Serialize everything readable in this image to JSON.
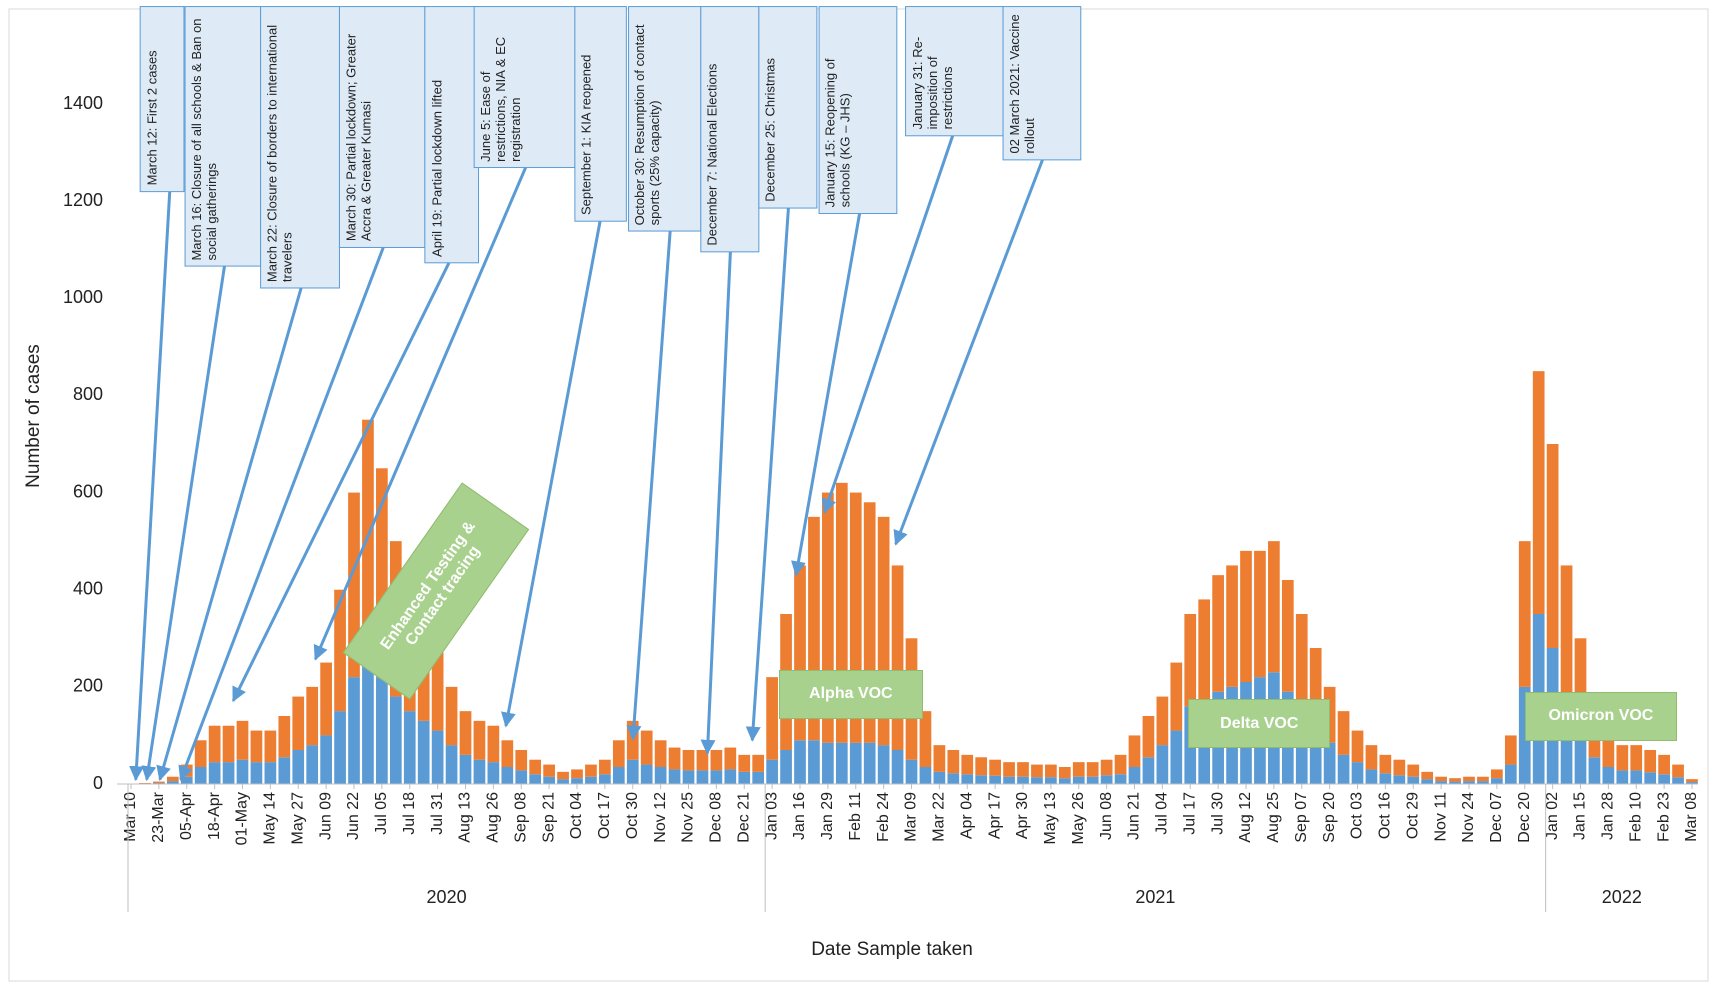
{
  "chart_data": {
    "type": "stacked_bar",
    "x_label": "Date Sample taken",
    "y_label": "Number of cases",
    "categories": [
      "Mar 10",
      null,
      "23-Mar",
      null,
      "05-Apr",
      null,
      "18-Apr",
      null,
      "01-May",
      null,
      "May 14",
      null,
      "May 27",
      null,
      "Jun 09",
      null,
      "Jun 22",
      null,
      "Jul 05",
      null,
      "Jul 18",
      null,
      "Jul 31",
      null,
      "Aug 13",
      null,
      "Aug 26",
      null,
      "Sep 08",
      null,
      "Sep 21",
      null,
      "Oct 04",
      null,
      "Oct 17",
      null,
      "Oct 30",
      null,
      "Nov 12",
      null,
      "Nov 25",
      null,
      "Dec 08",
      null,
      "Dec 21",
      null,
      "Jan 03",
      null,
      "Jan 16",
      null,
      "Jan 29",
      null,
      "Feb 11",
      null,
      "Feb 24",
      null,
      "Mar 09",
      null,
      "Mar 22",
      null,
      "Apr 04",
      null,
      "Apr 17",
      null,
      "Apr 30",
      null,
      "May 13",
      null,
      "May 26",
      null,
      "Jun 08",
      null,
      "Jun 21",
      null,
      "Jul 04",
      null,
      "Jul 17",
      null,
      "Jul 30",
      null,
      "Aug 12",
      null,
      "Aug 25",
      null,
      "Sep 07",
      null,
      "Sep 20",
      null,
      "Oct 03",
      null,
      "Oct 16",
      null,
      "Oct 29",
      null,
      "Nov 11",
      null,
      "Nov 24",
      null,
      "Dec 07",
      null,
      "Dec 20",
      null,
      "Jan 02",
      null,
      "Jan 15",
      null,
      "Jan 28",
      null,
      "Feb 10",
      null,
      "Feb 23",
      null,
      "Mar 08"
    ],
    "x_groups": [
      {
        "label": "2020",
        "first": "Mar 10"
      },
      {
        "label": "2021",
        "first": "Jan 03"
      },
      {
        "label": "2022",
        "first": "Jan 02"
      }
    ],
    "series": [
      {
        "color": "#5b9bd5",
        "values": [
          0,
          1,
          2,
          6,
          15,
          35,
          45,
          45,
          50,
          45,
          45,
          55,
          70,
          80,
          100,
          150,
          220,
          250,
          220,
          180,
          150,
          130,
          110,
          80,
          60,
          50,
          45,
          35,
          28,
          20,
          15,
          10,
          12,
          15,
          20,
          35,
          50,
          40,
          35,
          30,
          28,
          28,
          28,
          30,
          25,
          25,
          50,
          70,
          90,
          90,
          85,
          85,
          85,
          85,
          80,
          70,
          50,
          35,
          25,
          22,
          20,
          18,
          17,
          15,
          15,
          14,
          14,
          12,
          15,
          15,
          18,
          20,
          35,
          55,
          80,
          110,
          160,
          170,
          190,
          200,
          210,
          220,
          230,
          190,
          150,
          120,
          85,
          60,
          45,
          30,
          22,
          18,
          15,
          10,
          6,
          5,
          6,
          6,
          12,
          40,
          200,
          350,
          280,
          180,
          110,
          55,
          35,
          28,
          28,
          24,
          20,
          14,
          4
        ]
      },
      {
        "color": "#ed7d31",
        "values": [
          0,
          1,
          3,
          9,
          25,
          55,
          75,
          75,
          80,
          65,
          65,
          85,
          110,
          120,
          150,
          250,
          380,
          500,
          430,
          320,
          250,
          220,
          190,
          120,
          90,
          80,
          75,
          55,
          42,
          30,
          25,
          15,
          18,
          25,
          30,
          55,
          80,
          70,
          55,
          45,
          42,
          42,
          42,
          45,
          35,
          35,
          170,
          280,
          360,
          460,
          515,
          535,
          515,
          495,
          470,
          380,
          250,
          115,
          55,
          48,
          40,
          37,
          33,
          30,
          30,
          26,
          26,
          23,
          30,
          30,
          32,
          40,
          65,
          85,
          100,
          140,
          190,
          210,
          240,
          250,
          270,
          260,
          270,
          230,
          200,
          160,
          115,
          90,
          65,
          50,
          38,
          32,
          25,
          15,
          9,
          7,
          9,
          9,
          18,
          60,
          300,
          500,
          420,
          270,
          190,
          95,
          65,
          52,
          52,
          46,
          40,
          26,
          6
        ]
      }
    ],
    "ylim": [
      0,
      1400
    ],
    "yticks": [
      0,
      200,
      400,
      600,
      800,
      1000,
      1200,
      1400
    ],
    "annotations": [
      "March 12: First 2 cases",
      "March 16: Closure of all schools & Ban on social gatherings",
      "March 22: Closure of borders to international travelers",
      "March 30: Partial lockdown; Greater Accra & Greater Kumasi",
      "April 19: Partial lockdown lifted",
      "June 5: Ease of restrictions, NIA & EC registration",
      "September 1: KIA reopened",
      "October 30: Resumption of contact sports (25% capacity)",
      "December 7: National Elections",
      "December 25: Christmas",
      "January 15: Reopening of schools (KG – JHS)",
      "January 31: Re-imposition of restrictions",
      "02 March 2021: Vaccine rollout"
    ],
    "labels": [
      "Enhanced Testing & Contact tracing",
      "Alpha VOC",
      "Delta VOC",
      "Omicron VOC"
    ]
  }
}
